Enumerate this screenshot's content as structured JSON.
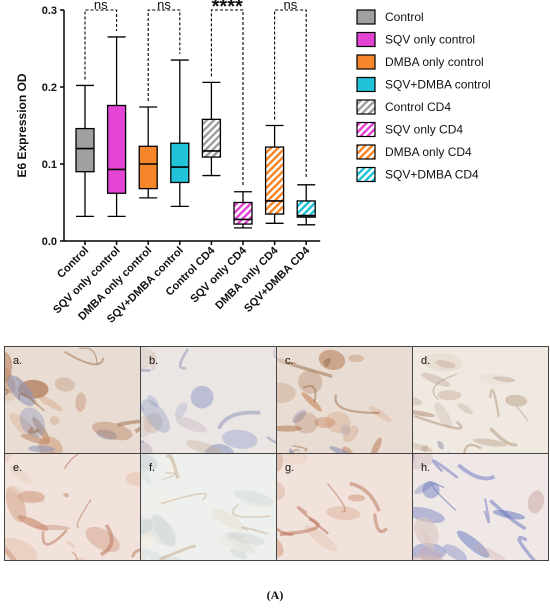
{
  "chart_data": {
    "type": "box",
    "ylabel": "E6 Expression OD",
    "ylim": [
      0,
      0.3
    ],
    "yticks": [
      "0.0",
      "0.1",
      "0.2",
      "0.3"
    ],
    "categories": [
      "Control",
      "SQV only control",
      "DMBA only control",
      "SQV+DMBA control",
      "Control CD4",
      "SQV only CD4",
      "DMBA only CD4",
      "SQV+DMBA CD4"
    ],
    "boxes": [
      {
        "name": "Control",
        "min": 0.032,
        "q1": 0.09,
        "median": 0.12,
        "q3": 0.146,
        "max": 0.202,
        "color": "#a0a0a0",
        "hatched": false
      },
      {
        "name": "SQV only control",
        "min": 0.032,
        "q1": 0.062,
        "median": 0.093,
        "q3": 0.176,
        "max": 0.265,
        "color": "#e344d4",
        "hatched": false
      },
      {
        "name": "DMBA only control",
        "min": 0.056,
        "q1": 0.068,
        "median": 0.1,
        "q3": 0.123,
        "max": 0.174,
        "color": "#f5862a",
        "hatched": false
      },
      {
        "name": "SQV+DMBA control",
        "min": 0.045,
        "q1": 0.076,
        "median": 0.096,
        "q3": 0.127,
        "max": 0.235,
        "color": "#22c3d8",
        "hatched": false
      },
      {
        "name": "Control CD4",
        "min": 0.085,
        "q1": 0.109,
        "median": 0.117,
        "q3": 0.158,
        "max": 0.206,
        "color": "#a0a0a0",
        "hatched": true
      },
      {
        "name": "SQV only CD4",
        "min": 0.017,
        "q1": 0.022,
        "median": 0.028,
        "q3": 0.05,
        "max": 0.064,
        "color": "#e344d4",
        "hatched": true
      },
      {
        "name": "DMBA only CD4",
        "min": 0.023,
        "q1": 0.035,
        "median": 0.052,
        "q3": 0.122,
        "max": 0.15,
        "color": "#f5862a",
        "hatched": true
      },
      {
        "name": "SQV+DMBA CD4",
        "min": 0.021,
        "q1": 0.031,
        "median": 0.033,
        "q3": 0.052,
        "max": 0.073,
        "color": "#22c3d8",
        "hatched": true
      }
    ],
    "comparisons": [
      {
        "pair": [
          "Control",
          "SQV only control"
        ],
        "label": "ns"
      },
      {
        "pair": [
          "DMBA only control",
          "SQV+DMBA control"
        ],
        "label": "ns"
      },
      {
        "pair": [
          "Control CD4",
          "SQV only CD4"
        ],
        "label": "****"
      },
      {
        "pair": [
          "DMBA only CD4",
          "SQV+DMBA CD4"
        ],
        "label": "ns"
      }
    ],
    "legend": {
      "placement": "right",
      "entries": [
        {
          "label": "Control",
          "color": "#a0a0a0",
          "hatched": false
        },
        {
          "label": "SQV only control",
          "color": "#e344d4",
          "hatched": false
        },
        {
          "label": "DMBA only control",
          "color": "#f5862a",
          "hatched": false
        },
        {
          "label": "SQV+DMBA control",
          "color": "#22c3d8",
          "hatched": false
        },
        {
          "label": "Control CD4",
          "color": "#a0a0a0",
          "hatched": true
        },
        {
          "label": "SQV only CD4",
          "color": "#e344d4",
          "hatched": true
        },
        {
          "label": "DMBA only CD4",
          "color": "#f5862a",
          "hatched": true
        },
        {
          "label": "SQV+DMBA CD4",
          "color": "#22c3d8",
          "hatched": true
        }
      ]
    }
  },
  "micrographs": [
    {
      "label": "a.",
      "stain": "heavy-brown"
    },
    {
      "label": "b.",
      "stain": "blue-light"
    },
    {
      "label": "c.",
      "stain": "heavy-brown"
    },
    {
      "label": "d.",
      "stain": "pale-brown"
    },
    {
      "label": "e.",
      "stain": "pink-brown"
    },
    {
      "label": "f.",
      "stain": "very-light"
    },
    {
      "label": "g.",
      "stain": "pink-brown"
    },
    {
      "label": "h.",
      "stain": "blue-epithelium"
    }
  ],
  "caption": "(A)"
}
